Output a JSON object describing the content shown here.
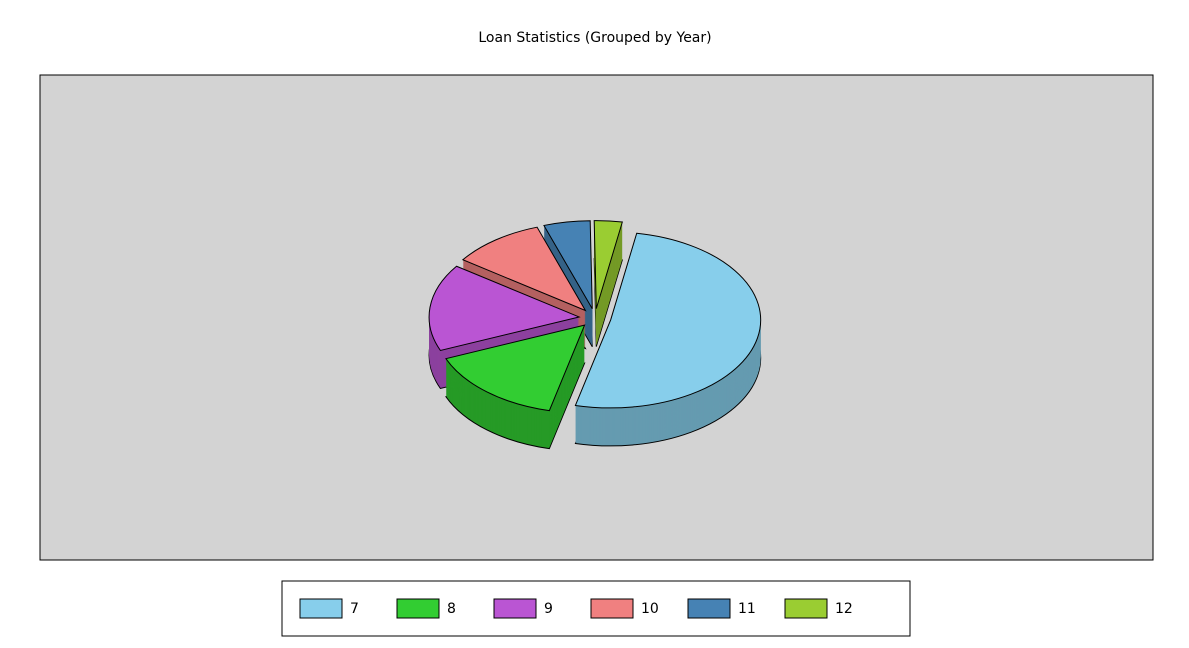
{
  "chart_data": {
    "type": "pie",
    "title": "Loan Statistics (Grouped by Year)",
    "categories": [
      "7",
      "8",
      "9",
      "10",
      "11",
      "12"
    ],
    "values": [
      51,
      15,
      16,
      10,
      5,
      3
    ],
    "colors": [
      "#87ceeb",
      "#32cd32",
      "#ba55d3",
      "#f08080",
      "#4682b4",
      "#9acd32"
    ],
    "legend": "bottom"
  }
}
